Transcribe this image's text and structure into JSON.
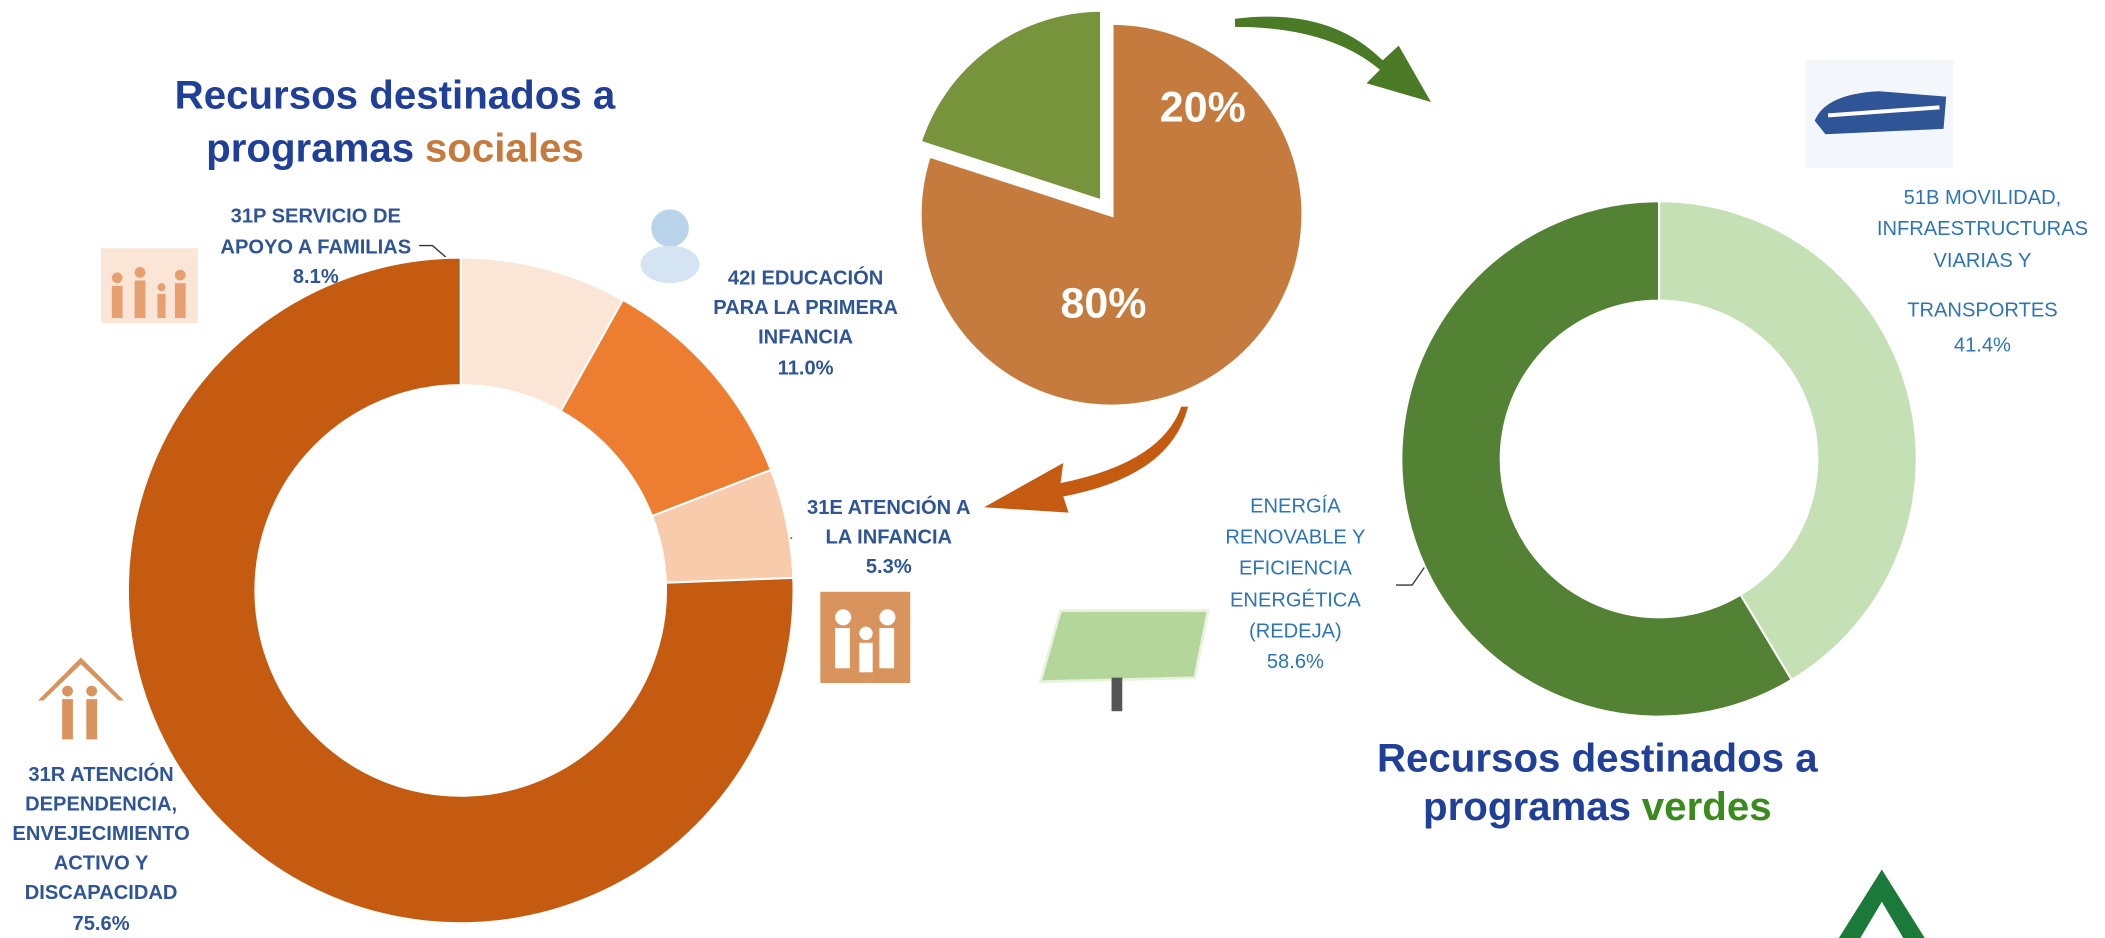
{
  "chart_data": [
    {
      "type": "pie",
      "values": [
        80,
        20
      ],
      "value_labels": [
        "80%",
        "20%"
      ],
      "colors": [
        "#c57b3e",
        "#77933c"
      ],
      "explode": [
        false,
        true
      ]
    },
    {
      "type": "donut",
      "title": {
        "lines": [
          "Recursos destinados a",
          "programas"
        ],
        "highlight": "sociales"
      },
      "categories": [
        [
          "31P SERVICIO DE",
          "APOYO A FAMILIAS"
        ],
        [
          "42I EDUCACIÓN",
          "PARA LA PRIMERA",
          "INFANCIA"
        ],
        [
          "31E ATENCIÓN A",
          "LA INFANCIA"
        ],
        [
          "31R ATENCIÓN",
          "DEPENDENCIA,",
          "ENVEJECIMIENTO",
          "ACTIVO Y",
          "DISCAPACIDAD"
        ]
      ],
      "values": [
        8.1,
        11.0,
        5.3,
        75.6
      ],
      "value_labels": [
        "8.1%",
        "11.0%",
        "5.3%",
        "75.6%"
      ],
      "colors": [
        "#fbe5d6",
        "#ed7d31",
        "#f8cbad",
        "#c55a11"
      ]
    },
    {
      "type": "donut",
      "title": {
        "lines": [
          "Recursos destinados a",
          "programas"
        ],
        "highlight": "verdes"
      },
      "categories": [
        [
          "51B MOVILIDAD,",
          "INFRAESTRUCTURAS",
          "VIARIAS Y",
          "TRANSPORTES"
        ],
        [
          "ENERGÍA",
          "RENOVABLE Y",
          "EFICIENCIA",
          "ENERGÉTICA",
          "(REDEJA)"
        ]
      ],
      "values": [
        41.4,
        58.6
      ],
      "value_labels": [
        "41.4%",
        "58.6%"
      ],
      "colors": [
        "#c5e0b4",
        "#548235"
      ]
    }
  ]
}
